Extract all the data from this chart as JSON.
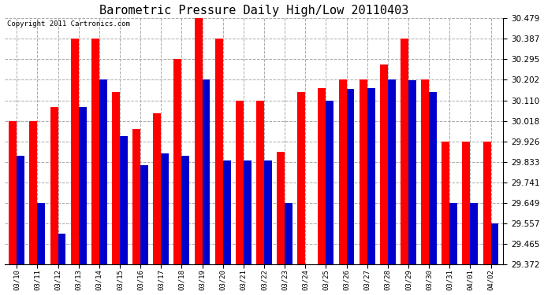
{
  "title": "Barometric Pressure Daily High/Low 20110403",
  "copyright": "Copyright 2011 Cartronics.com",
  "dates": [
    "03/10",
    "03/11",
    "03/12",
    "03/13",
    "03/14",
    "03/15",
    "03/16",
    "03/17",
    "03/18",
    "03/19",
    "03/20",
    "03/21",
    "03/22",
    "03/23",
    "03/24",
    "03/25",
    "03/26",
    "03/27",
    "03/28",
    "03/29",
    "03/30",
    "03/31",
    "04/01",
    "04/02"
  ],
  "highs": [
    30.018,
    30.018,
    30.08,
    30.387,
    30.387,
    30.148,
    29.98,
    30.05,
    30.295,
    30.479,
    30.387,
    30.11,
    30.11,
    29.88,
    30.148,
    30.165,
    30.202,
    30.202,
    30.27,
    30.387,
    30.202,
    29.926,
    29.926,
    29.926
  ],
  "lows": [
    29.86,
    29.649,
    29.51,
    30.08,
    30.202,
    29.95,
    29.82,
    29.87,
    29.86,
    30.202,
    29.84,
    29.84,
    29.84,
    29.65,
    29.372,
    30.11,
    30.16,
    30.165,
    30.202,
    30.2,
    30.148,
    29.649,
    29.649,
    29.557
  ],
  "high_color": "#ff0000",
  "low_color": "#0000cc",
  "bg_color": "#ffffff",
  "grid_color": "#aaaaaa",
  "ymin": 29.372,
  "ymax": 30.479,
  "yticks": [
    29.372,
    29.465,
    29.557,
    29.649,
    29.741,
    29.833,
    29.926,
    30.018,
    30.11,
    30.202,
    30.295,
    30.387,
    30.479
  ],
  "title_fontsize": 11,
  "copyright_fontsize": 6.5,
  "bar_width": 0.38,
  "figwidth": 6.9,
  "figheight": 3.75,
  "dpi": 100
}
